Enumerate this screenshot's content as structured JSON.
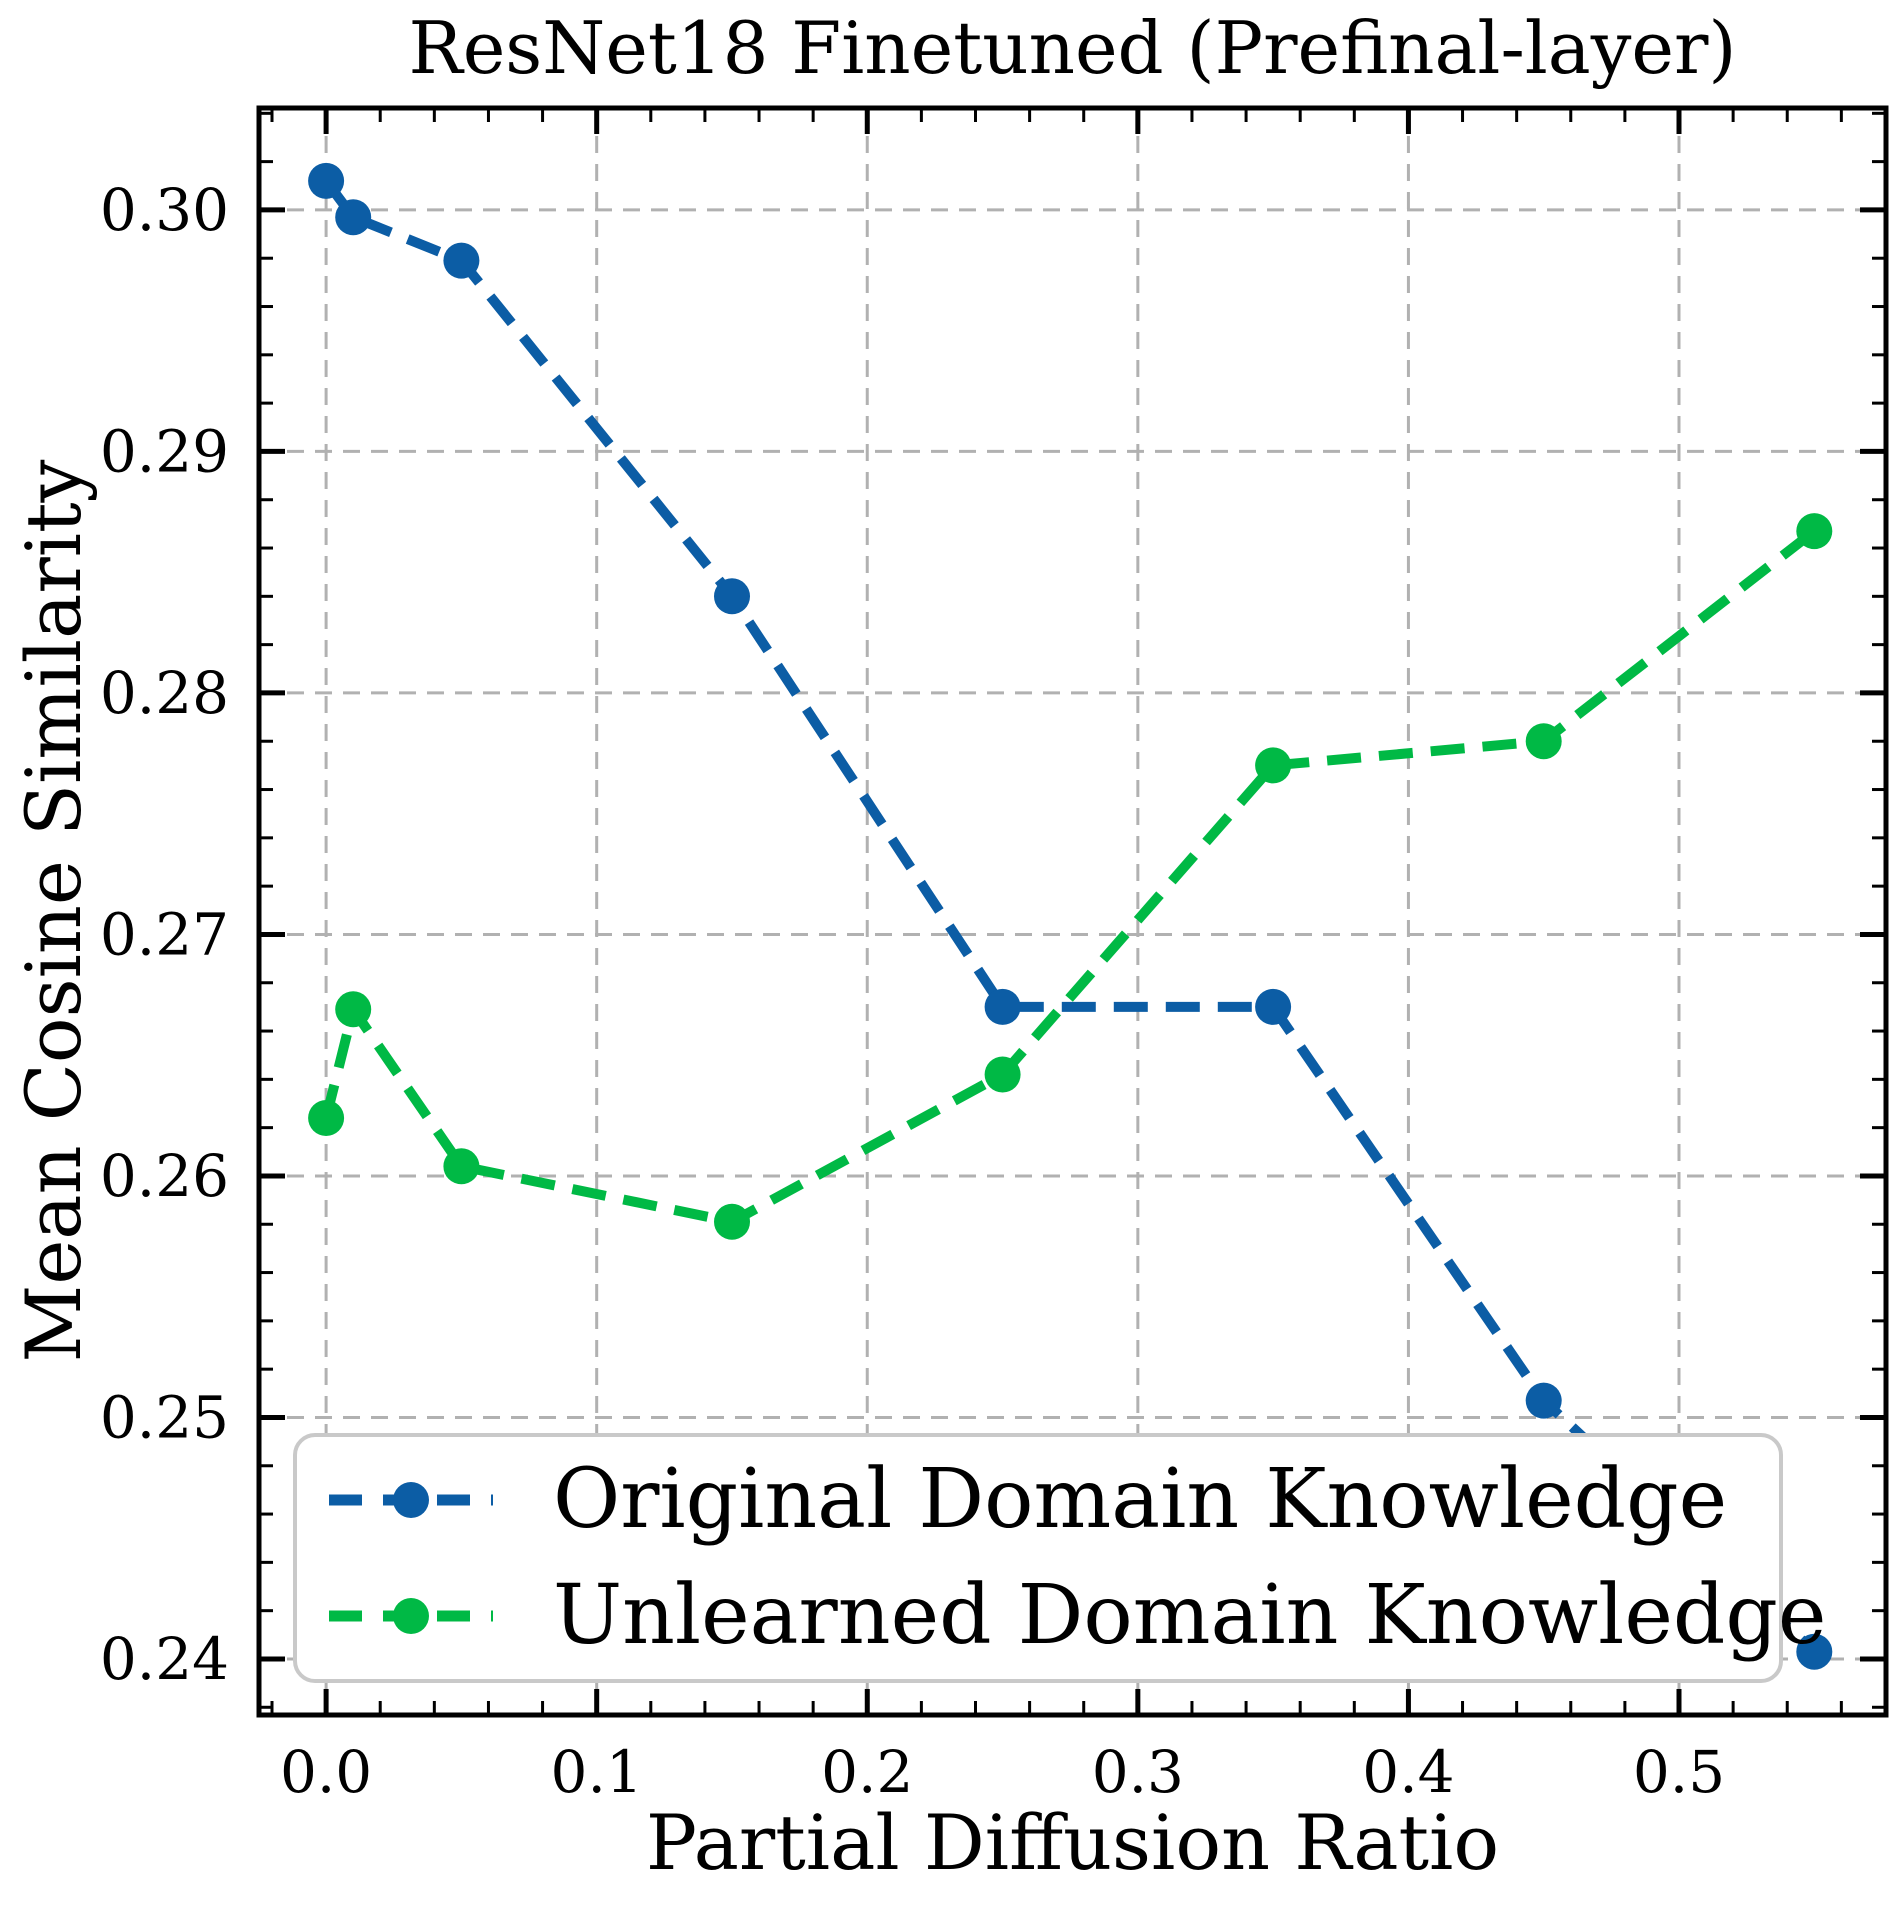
{
  "chart_data": {
    "type": "line",
    "title": "ResNet18 Finetuned (Prefinal-layer)",
    "xlabel": "Partial Diffusion Ratio",
    "ylabel": "Mean Cosine Similarity",
    "x": [
      0.0,
      0.01,
      0.05,
      0.15,
      0.25,
      0.35,
      0.45,
      0.55
    ],
    "series": [
      {
        "name": "Original Domain Knowledge",
        "color": "#0C5DA5",
        "values": [
          0.3012,
          0.2997,
          0.2979,
          0.284,
          0.267,
          0.267,
          0.2507,
          0.2403
        ]
      },
      {
        "name": "Unlearned Domain Knowledge",
        "color": "#00B945",
        "values": [
          0.2624,
          0.2669,
          0.2604,
          0.2581,
          0.2642,
          0.277,
          0.278,
          0.2867
        ]
      }
    ],
    "xlim": [
      -0.0248,
      0.5765
    ],
    "ylim": [
      0.23768,
      0.30422
    ],
    "x_ticks": {
      "values": [
        0.0,
        0.1,
        0.2,
        0.3,
        0.4,
        0.5
      ],
      "labels": [
        "0.0",
        "0.1",
        "0.2",
        "0.3",
        "0.4",
        "0.5"
      ],
      "minor_step": 0.02
    },
    "y_ticks": {
      "values": [
        0.24,
        0.25,
        0.26,
        0.27,
        0.28,
        0.29,
        0.3
      ],
      "labels": [
        "0.24",
        "0.25",
        "0.26",
        "0.27",
        "0.28",
        "0.29",
        "0.30"
      ],
      "minor_step": 0.002
    },
    "grid": true,
    "grid_color": "#b1b1b1",
    "line_style": "dashed",
    "marker": "circle",
    "legend_position": "lower left",
    "axis_color": "#000000"
  }
}
